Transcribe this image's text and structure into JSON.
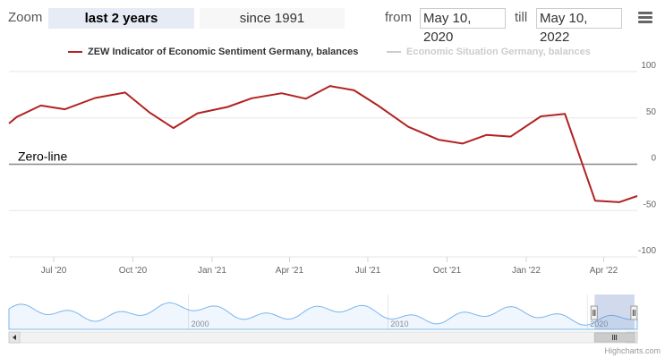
{
  "toolbar": {
    "zoom_label": "Zoom",
    "buttons": [
      {
        "label": "last 2 years",
        "active": true
      },
      {
        "label": "since 1991",
        "active": false
      }
    ],
    "from_label": "from",
    "from_value": "May 10, 2020",
    "till_label": "till",
    "till_value": "May 10, 2022"
  },
  "legend": [
    {
      "name": "ZEW Indicator of Economic Sentiment Germany, balances",
      "color": "#b22222",
      "visible": true
    },
    {
      "name": "Economic Situation Germany, balances",
      "color": "#cccccc",
      "visible": false
    }
  ],
  "chart_data": {
    "type": "line",
    "x_axis": {
      "type": "datetime",
      "range": [
        "2020-05-10",
        "2022-05-10"
      ],
      "tick_labels": [
        "Jul '20",
        "Oct '20",
        "Jan '21",
        "Apr '21",
        "Jul '21",
        "Oct '21",
        "Jan '22",
        "Apr '22"
      ],
      "tick_dates": [
        "2020-07-01",
        "2020-10-01",
        "2021-01-01",
        "2021-04-01",
        "2021-07-01",
        "2021-10-01",
        "2022-01-01",
        "2022-04-01"
      ]
    },
    "y_axis": {
      "range": [
        -100,
        100
      ],
      "tick_values": [
        100,
        50,
        0,
        -50,
        -100
      ],
      "tick_labels": [
        "100",
        "50",
        "0",
        "-50",
        "-100"
      ],
      "position": "right",
      "grid": true
    },
    "plot_line": {
      "value": 0,
      "label": "Zero-line"
    },
    "series": [
      {
        "name": "ZEW Indicator of Economic Sentiment Germany, balances",
        "color": "#b22222",
        "points": [
          [
            "2020-05-10",
            44
          ],
          [
            "2020-05-19",
            51.0
          ],
          [
            "2020-06-16",
            63.4
          ],
          [
            "2020-07-14",
            59.3
          ],
          [
            "2020-08-18",
            71.5
          ],
          [
            "2020-09-22",
            77.4
          ],
          [
            "2020-10-20",
            56.1
          ],
          [
            "2020-11-17",
            39.0
          ],
          [
            "2020-12-15",
            55.0
          ],
          [
            "2021-01-19",
            61.8
          ],
          [
            "2021-02-16",
            71.2
          ],
          [
            "2021-03-23",
            76.6
          ],
          [
            "2021-04-20",
            70.7
          ],
          [
            "2021-05-18",
            84.4
          ],
          [
            "2021-06-15",
            79.8
          ],
          [
            "2021-07-13",
            63.3
          ],
          [
            "2021-08-17",
            40.4
          ],
          [
            "2021-09-21",
            26.5
          ],
          [
            "2021-10-19",
            22.3
          ],
          [
            "2021-11-16",
            31.7
          ],
          [
            "2021-12-14",
            29.9
          ],
          [
            "2022-01-18",
            51.7
          ],
          [
            "2022-02-15",
            54.3
          ],
          [
            "2022-03-22",
            -39.3
          ],
          [
            "2022-04-19",
            -41.0
          ],
          [
            "2022-05-10",
            -34.3
          ]
        ]
      }
    ],
    "navigator": {
      "x_tick_labels": [
        "2000",
        "2010",
        "2020"
      ],
      "x_tick_years": [
        2000,
        2010,
        2020
      ],
      "x_range_years": [
        1991,
        2022.5
      ]
    }
  },
  "credits": "Highcharts.com"
}
